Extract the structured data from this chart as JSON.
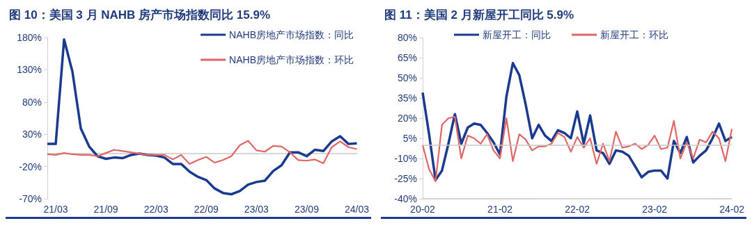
{
  "chart_data": [
    {
      "type": "line",
      "title": "图 10：美国 3 月 NAHB 房产市场指数同比 15.9%",
      "legend": "top right",
      "categories": [
        null,
        "21/03",
        null,
        null,
        null,
        null,
        null,
        "21/09",
        null,
        null,
        null,
        null,
        null,
        "22/03",
        null,
        null,
        null,
        null,
        null,
        "22/09",
        null,
        null,
        null,
        null,
        null,
        "23/03",
        null,
        null,
        null,
        null,
        null,
        "23/09",
        null,
        null,
        null,
        null,
        null,
        "24/03"
      ],
      "ylim": [
        -70,
        180
      ],
      "yticks": [
        {
          "value": -70,
          "label": "-70%"
        },
        {
          "value": -20,
          "label": "-20%"
        },
        {
          "value": 30,
          "label": "30%"
        },
        {
          "value": 80,
          "label": "80%"
        },
        {
          "value": 130,
          "label": "130%"
        },
        {
          "value": 180,
          "label": "180%"
        }
      ],
      "series": [
        {
          "name": "NAHB房地产市场指数：同比",
          "color": "#1a3a8f",
          "values": [
            15,
            15,
            177,
            127,
            39,
            11,
            -4,
            -8,
            -6,
            -7,
            -2,
            0,
            -2,
            -3,
            -6,
            -16,
            -16,
            -28,
            -36,
            -41,
            -54,
            -61,
            -63,
            -58,
            -48,
            -44,
            -42,
            -27,
            -18,
            2,
            2,
            -4,
            6,
            4,
            19,
            27,
            15,
            16
          ]
        },
        {
          "name": "NAHB房地产市场指数：环比",
          "color": "#e06666",
          "values": [
            -1,
            -2,
            1,
            -1,
            -2,
            -2,
            -4,
            1,
            6,
            4,
            2,
            0,
            -2,
            -2,
            -2,
            -9,
            -2,
            -16,
            -10,
            -5,
            -14,
            -10,
            -4,
            13,
            20,
            5,
            3,
            12,
            11,
            2,
            -10,
            -11,
            -9,
            -15,
            10,
            19,
            10,
            7
          ]
        }
      ]
    },
    {
      "type": "line",
      "title": "图 11：美国 2 月新屋开工同比 5.9%",
      "legend": "top",
      "categories": [
        "20-02",
        null,
        null,
        null,
        null,
        null,
        null,
        null,
        null,
        null,
        null,
        null,
        "21-02",
        null,
        null,
        null,
        null,
        null,
        null,
        null,
        null,
        null,
        null,
        null,
        "22-02",
        null,
        null,
        null,
        null,
        null,
        null,
        null,
        null,
        null,
        null,
        null,
        "23-02",
        null,
        null,
        null,
        null,
        null,
        null,
        null,
        null,
        null,
        null,
        null,
        "24-02"
      ],
      "ylim": [
        -40,
        80
      ],
      "yticks": [
        {
          "value": -40,
          "label": "-40%"
        },
        {
          "value": -25,
          "label": "-25%"
        },
        {
          "value": -10,
          "label": "-10%"
        },
        {
          "value": 5,
          "label": "5%"
        },
        {
          "value": 20,
          "label": "20%"
        },
        {
          "value": 35,
          "label": "35%"
        },
        {
          "value": 50,
          "label": "50%"
        },
        {
          "value": 65,
          "label": "65%"
        },
        {
          "value": 80,
          "label": "80%"
        }
      ],
      "ref_lines": [
        {
          "axis": "y",
          "value": 0,
          "color": "#c8c8c8"
        }
      ],
      "series": [
        {
          "name": "新屋开工：同比",
          "color": "#1a3a8f",
          "values": [
            39,
            8,
            -26,
            -19,
            1,
            23,
            1,
            13,
            16,
            15,
            9,
            2,
            -7,
            36,
            61,
            52,
            30,
            5,
            15,
            7,
            3,
            11,
            9,
            5,
            25,
            1,
            22,
            -4,
            -6,
            -14,
            -4,
            -5,
            -8,
            -16,
            -24,
            -20,
            -19,
            -19,
            -25,
            3,
            -6,
            6,
            -13,
            -8,
            -4,
            5,
            16,
            3,
            6
          ]
        },
        {
          "name": "新屋开工：环比",
          "color": "#e06666",
          "values": [
            0,
            -18,
            -27,
            15,
            20,
            21,
            -10,
            7,
            5,
            1,
            8,
            -4,
            -10,
            20,
            -12,
            8,
            4,
            -4,
            -1,
            -1,
            1,
            9,
            6,
            -5,
            6,
            -2,
            5,
            -14,
            1,
            -12,
            10,
            -2,
            -1,
            1,
            -3,
            0,
            7,
            -3,
            -2,
            18,
            -10,
            2,
            -10,
            4,
            2,
            10,
            5,
            -12,
            12
          ]
        }
      ]
    }
  ]
}
